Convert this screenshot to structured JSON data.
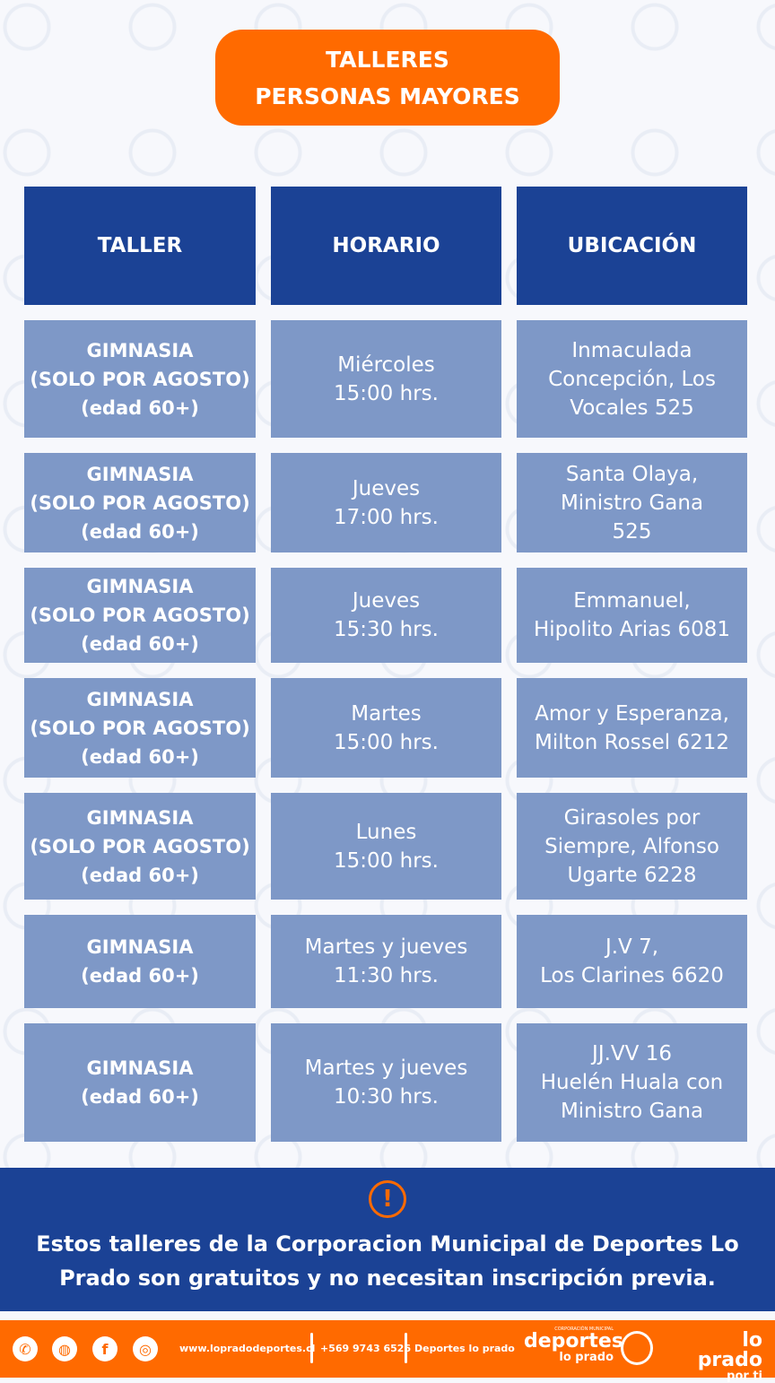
{
  "title": {
    "line1": "TALLERES",
    "line2": "PERSONAS MAYORES"
  },
  "table": {
    "headers": [
      "TALLER",
      "HORARIO",
      "UBICACIÓN"
    ],
    "rows": [
      {
        "taller": [
          "GIMNASIA",
          "(SOLO POR AGOSTO)",
          "(edad 60+)"
        ],
        "horario": [
          "Miércoles",
          "15:00 hrs."
        ],
        "ubicacion": [
          "Inmaculada",
          "Concepción, Los",
          "Vocales 525"
        ]
      },
      {
        "taller": [
          "GIMNASIA",
          "(SOLO POR AGOSTO)",
          "(edad 60+)"
        ],
        "horario": [
          "Jueves",
          "17:00 hrs."
        ],
        "ubicacion": [
          "Santa Olaya,",
          "Ministro Gana",
          "525"
        ]
      },
      {
        "taller": [
          "GIMNASIA",
          "(SOLO POR AGOSTO)",
          "(edad 60+)"
        ],
        "horario": [
          "Jueves",
          "15:30 hrs."
        ],
        "ubicacion": [
          "Emmanuel,",
          "Hipolito Arias 6081"
        ]
      },
      {
        "taller": [
          "GIMNASIA",
          "(SOLO POR AGOSTO)",
          "(edad 60+)"
        ],
        "horario": [
          "Martes",
          "15:00 hrs."
        ],
        "ubicacion": [
          "Amor y Esperanza,",
          "Milton Rossel 6212"
        ]
      },
      {
        "taller": [
          "GIMNASIA",
          "(SOLO POR AGOSTO)",
          "(edad 60+)"
        ],
        "horario": [
          "Lunes",
          "15:00 hrs."
        ],
        "ubicacion": [
          "Girasoles por",
          "Siempre, Alfonso",
          "Ugarte 6228"
        ]
      },
      {
        "taller": [
          "GIMNASIA",
          "(edad 60+)"
        ],
        "horario": [
          "Martes y jueves",
          "11:30 hrs."
        ],
        "ubicacion": [
          "J.V 7,",
          "Los Clarines 6620"
        ]
      },
      {
        "taller": [
          "GIMNASIA",
          "(edad 60+)"
        ],
        "horario": [
          "Martes y jueves",
          "10:30 hrs."
        ],
        "ubicacion": [
          "JJ.VV 16",
          "Huelén Huala con",
          "Ministro Gana"
        ]
      }
    ]
  },
  "banner": {
    "icon": "exclamation-circle-icon",
    "text": "Estos talleres de la Corporacion Municipal de Deportes Lo Prado son gratuitos y no necesitan inscripción previa."
  },
  "footer": {
    "icons": [
      "whatsapp-icon",
      "globe-icon",
      "facebook-icon",
      "instagram-icon"
    ],
    "website": "www.lopradodeportes.cl",
    "phone": "+569 9743 6526",
    "social": "Deportes lo prado",
    "logo1_small": "CORPORACIÓN MUNICIPAL",
    "logo1_main": "deportes",
    "logo1_sub": "lo prado",
    "logo2_main": "lo prado",
    "logo2_sub": "por ti"
  },
  "colors": {
    "orange": "#ff6a00",
    "navy": "#1b4295",
    "cell": "#7e98c7"
  }
}
